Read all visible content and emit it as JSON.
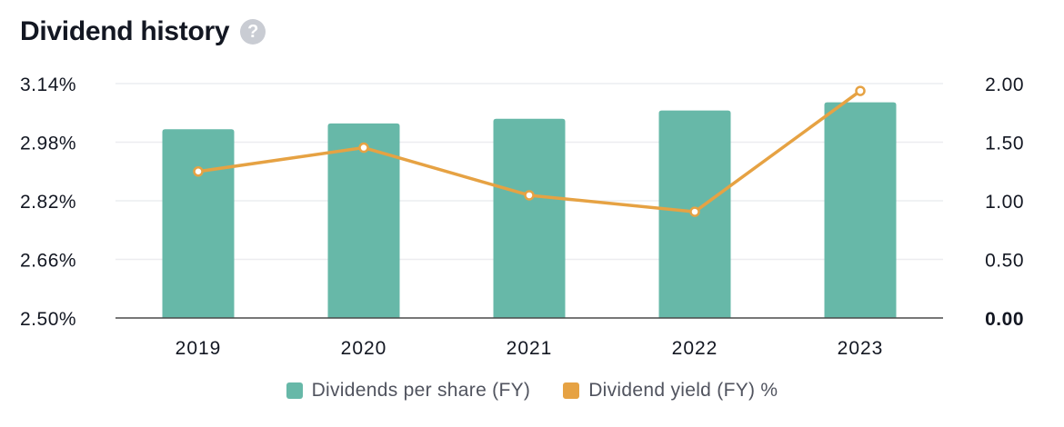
{
  "header": {
    "title": "Dividend history",
    "help_icon": "question-mark-icon",
    "help_glyph": "?"
  },
  "colors": {
    "bar": "#67b8a8",
    "line": "#e6a243",
    "grid": "#ecedf0",
    "axis": "#4a4a4a",
    "text": "#131722"
  },
  "chart_data": {
    "type": "bar",
    "categories": [
      "2019",
      "2020",
      "2021",
      "2022",
      "2023"
    ],
    "series": [
      {
        "name": "Dividends per share (FY)",
        "type": "bar",
        "axis": "right",
        "values": [
          1.61,
          1.66,
          1.7,
          1.77,
          1.84
        ]
      },
      {
        "name": "Dividend yield (FY) %",
        "type": "line",
        "axis": "left",
        "values": [
          2.9,
          2.965,
          2.835,
          2.79,
          3.12
        ]
      }
    ],
    "left_axis": {
      "ticks": [
        "3.14%",
        "2.98%",
        "2.82%",
        "2.66%",
        "2.50%"
      ],
      "min": 2.5,
      "max": 3.14
    },
    "right_axis": {
      "ticks": [
        "2.00",
        "1.50",
        "1.00",
        "0.50",
        "0.00"
      ],
      "min": 0,
      "max": 2.0
    },
    "grid": true,
    "legend_position": "bottom-center"
  },
  "legend": [
    {
      "label": "Dividends per share (FY)",
      "color": "#67b8a8"
    },
    {
      "label": "Dividend yield (FY) %",
      "color": "#e6a243"
    }
  ]
}
